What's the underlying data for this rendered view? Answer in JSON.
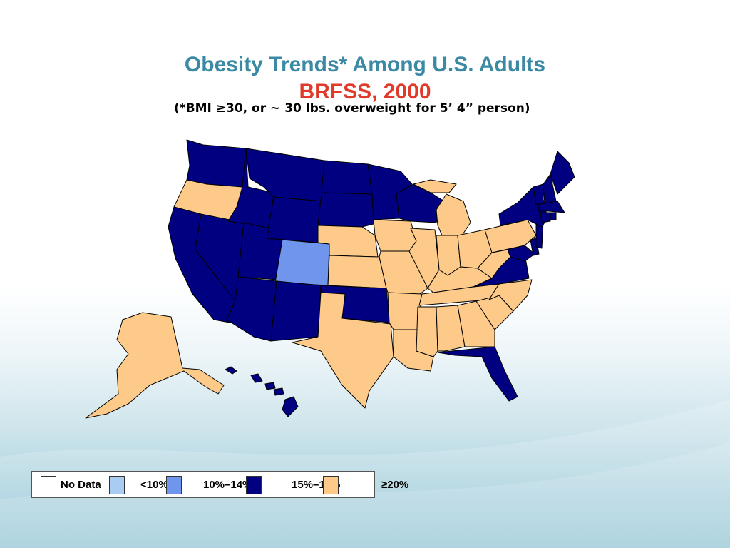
{
  "slide": {
    "title": "Obesity Trends* Among U.S. Adults",
    "subtitle": "BRFSS, 2000",
    "footnote": "(*BMI ≥30, or ~ 30 lbs. overweight for 5’ 4” person)"
  },
  "legend": {
    "items": [
      {
        "label": "No Data",
        "color": "#ffffff"
      },
      {
        "label": "<10%",
        "color": "#a9cdf2"
      },
      {
        "label": "10%–14%",
        "color": "#6f96ec"
      },
      {
        "label": "15%–19%",
        "color": "#000080"
      },
      {
        "label": "≥20%",
        "color": "#fdca89"
      }
    ]
  },
  "categories": {
    "15-19": [
      "WA",
      "ID",
      "MT",
      "ND",
      "MN",
      "WI",
      "WY",
      "SD",
      "CA",
      "NV",
      "UT",
      "AZ",
      "NM",
      "OK",
      "VA",
      "MD",
      "DE",
      "NJ",
      "NY",
      "VT",
      "NH",
      "ME",
      "MA",
      "CT",
      "RI",
      "FL",
      "HI"
    ],
    "20+": [
      "OR",
      "NE",
      "IA",
      "IL",
      "IN",
      "OH",
      "MI",
      "PA",
      "KS",
      "MO",
      "KY",
      "WV",
      "TN",
      "NC",
      "SC",
      "GA",
      "AL",
      "MS",
      "AR",
      "LA",
      "TX",
      "AK"
    ],
    "10-14": [
      "CO"
    ]
  }
}
